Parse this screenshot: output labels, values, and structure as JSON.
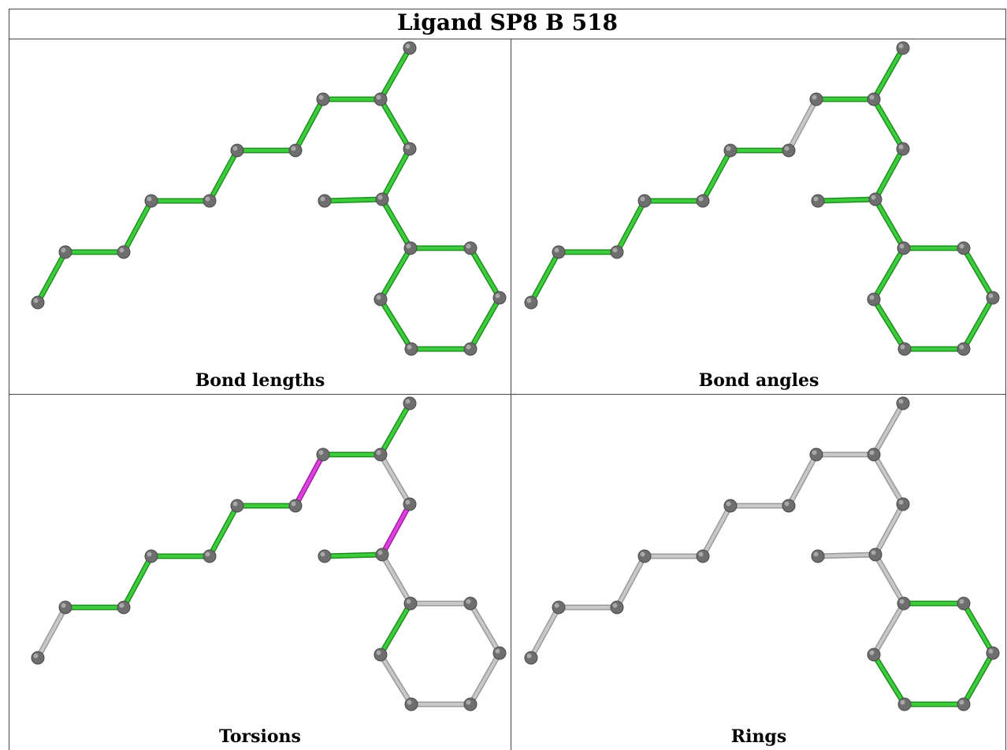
{
  "title": "Ligand SP8 B 518",
  "panels": [
    {
      "caption": "Bond lengths",
      "highlight": "green",
      "bond_colors": [
        "green",
        "green",
        "green",
        "green",
        "green",
        "green",
        "green",
        "green",
        "green",
        "green",
        "green",
        "green",
        "green",
        "green",
        "green",
        "green",
        "green",
        "green",
        "green",
        "green"
      ]
    },
    {
      "caption": "Bond angles",
      "highlight": "green",
      "bond_colors": [
        "green",
        "green",
        "green",
        "green",
        "green",
        "green",
        "grey",
        "green",
        "green",
        "green",
        "green",
        "green",
        "green",
        "green",
        "green",
        "green",
        "green",
        "green",
        "green",
        "green"
      ]
    },
    {
      "caption": "Torsions",
      "highlight": "green",
      "bond_colors": [
        "grey",
        "green",
        "green",
        "green",
        "green",
        "green",
        "magenta",
        "green",
        "green",
        "grey",
        "magenta",
        "green",
        "grey",
        "green",
        "grey",
        "grey",
        "grey",
        "grey",
        "grey",
        "grey"
      ]
    },
    {
      "caption": "Rings",
      "highlight": "green",
      "bond_colors": [
        "grey",
        "grey",
        "grey",
        "grey",
        "grey",
        "grey",
        "grey",
        "grey",
        "grey",
        "grey",
        "grey",
        "grey",
        "grey",
        "grey",
        "green",
        "green",
        "green",
        "green",
        "green",
        "green"
      ]
    }
  ],
  "colors": {
    "green": "#3ccc3c",
    "magenta": "#e040e0",
    "grey": "#c8c8c8",
    "atom": "#6e6e6e",
    "atom_highlight": "#a8a8a8"
  }
}
